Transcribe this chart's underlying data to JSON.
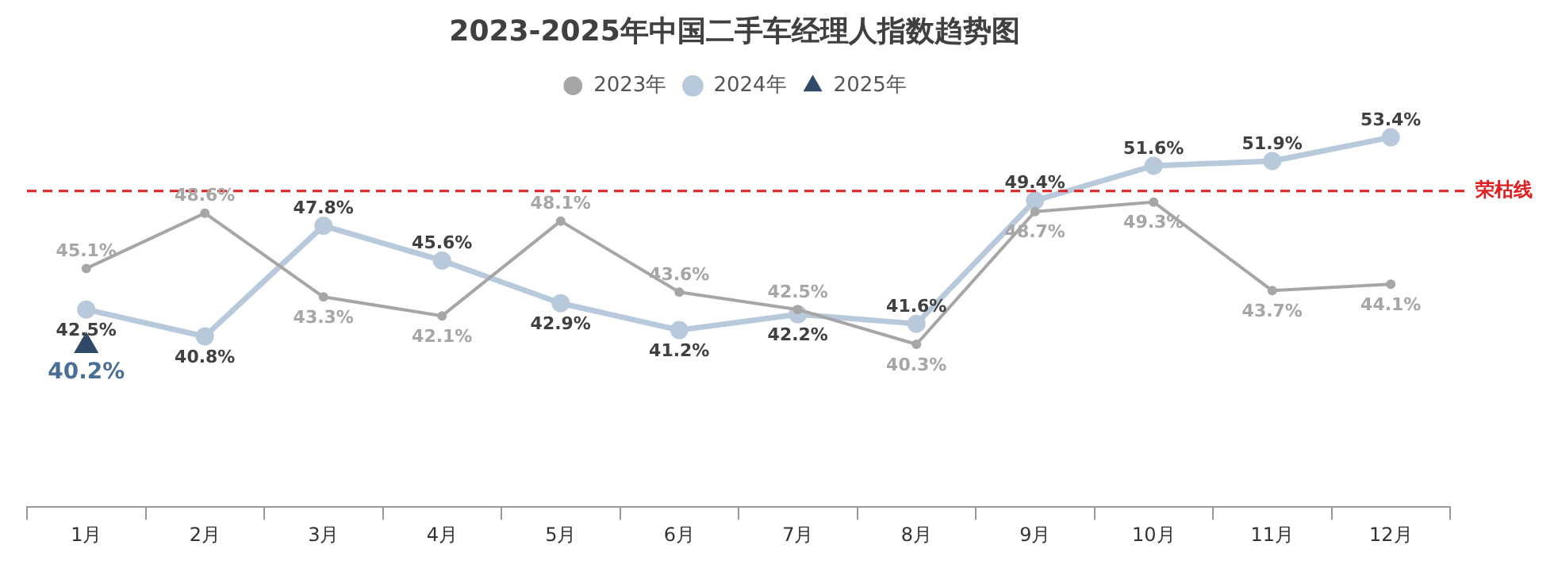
{
  "chart_data": {
    "type": "line",
    "title": "2023-2025年中国二手车经理人指数趋势图",
    "categories": [
      "1月",
      "2月",
      "3月",
      "4月",
      "5月",
      "6月",
      "7月",
      "8月",
      "9月",
      "10月",
      "11月",
      "12月"
    ],
    "series": [
      {
        "name": "2023年",
        "color": "#a6a6a6",
        "marker": "circle",
        "values": [
          45.1,
          48.6,
          43.3,
          42.1,
          48.1,
          43.6,
          42.5,
          40.3,
          48.7,
          49.3,
          43.7,
          44.1
        ],
        "value_labels": [
          "45.1%",
          "48.6%",
          "43.3%",
          "42.1%",
          "48.1%",
          "43.6%",
          "42.5%",
          "40.3%",
          "48.7%",
          "49.3%",
          "43.7%",
          "44.1%"
        ]
      },
      {
        "name": "2024年",
        "color": "#b8c9db",
        "marker": "circle",
        "values": [
          42.5,
          40.8,
          47.8,
          45.6,
          42.9,
          41.2,
          42.2,
          41.6,
          49.4,
          51.6,
          51.9,
          53.4
        ],
        "value_labels": [
          "42.5%",
          "40.8%",
          "47.8%",
          "45.6%",
          "42.9%",
          "41.2%",
          "42.2%",
          "41.6%",
          "49.4%",
          "51.6%",
          "51.9%",
          "53.4%"
        ]
      },
      {
        "name": "2025年",
        "color": "#2f4a66",
        "marker": "triangle",
        "values": [
          40.2,
          null,
          null,
          null,
          null,
          null,
          null,
          null,
          null,
          null,
          null,
          null
        ],
        "value_labels": [
          "40.2%",
          null,
          null,
          null,
          null,
          null,
          null,
          null,
          null,
          null,
          null,
          null
        ]
      }
    ],
    "legend": "top",
    "ref_lines": [
      {
        "axis": "y",
        "value": 50,
        "label": "荣枯线",
        "color": "#e02020",
        "line_style": "dashed"
      }
    ]
  }
}
